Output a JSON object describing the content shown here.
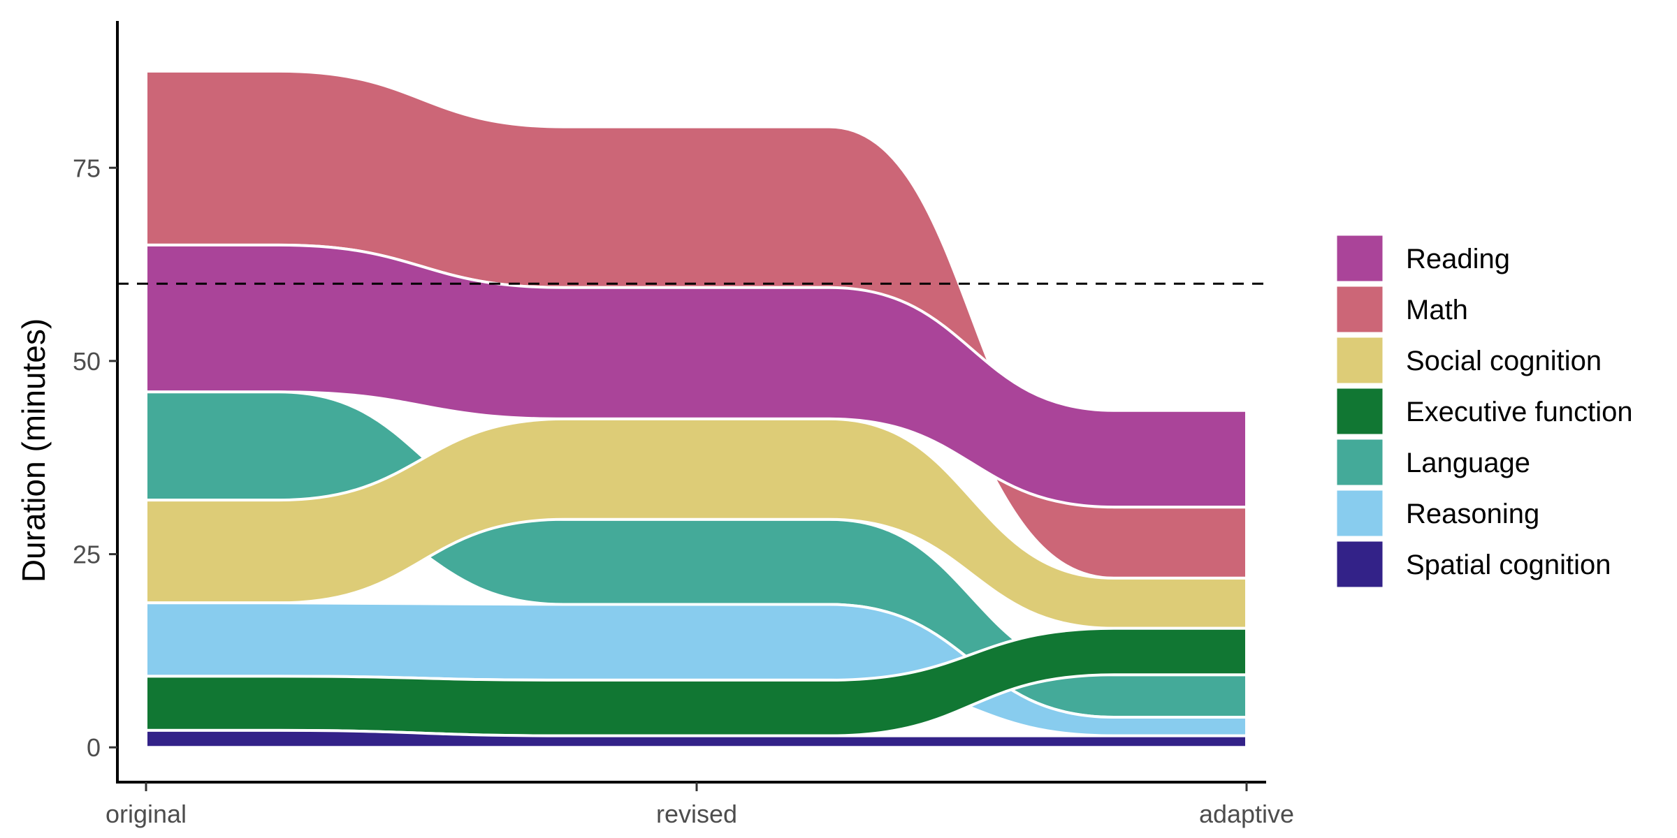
{
  "chart_data": {
    "type": "area",
    "x": [
      "original",
      "revised",
      "adaptive"
    ],
    "xlabel": "",
    "ylabel": "Duration (minutes)",
    "ylim": [
      -4.5,
      94
    ],
    "yticks": [
      0,
      25,
      50,
      75
    ],
    "reference_line": {
      "y": 60,
      "style": "dashed"
    },
    "grid": false,
    "legend_position": "right",
    "series": [
      {
        "name": "Spatial cognition",
        "color": "#332288",
        "values": [
          2.2,
          1.5,
          1.5
        ]
      },
      {
        "name": "Executive function",
        "color": "#117733",
        "values": [
          7.0,
          7.2,
          6.0
        ]
      },
      {
        "name": "Reasoning",
        "color": "#88CCEE",
        "values": [
          9.5,
          9.8,
          2.4
        ]
      },
      {
        "name": "Language",
        "color": "#44AA99",
        "values": [
          14.0,
          11.0,
          5.5
        ]
      },
      {
        "name": "Social cognition",
        "color": "#DDCC77",
        "values": [
          13.3,
          13.0,
          6.5
        ]
      },
      {
        "name": "Reading",
        "color": "#AA4499",
        "values": [
          19.0,
          17.0,
          12.5
        ]
      },
      {
        "name": "Math",
        "color": "#CC6677",
        "values": [
          22.5,
          20.8,
          9.2
        ]
      }
    ],
    "legend_order": [
      "Reading",
      "Math",
      "Social cognition",
      "Executive function",
      "Language",
      "Reasoning",
      "Spatial cognition"
    ],
    "stack_order": [
      [
        "Spatial cognition",
        "Executive function",
        "Reasoning",
        "Social cognition",
        "Language",
        "Reading",
        "Math"
      ],
      [
        "Spatial cognition",
        "Executive function",
        "Reasoning",
        "Language",
        "Social cognition",
        "Reading",
        "Math"
      ],
      [
        "Spatial cognition",
        "Reasoning",
        "Language",
        "Executive function",
        "Social cognition",
        "Math",
        "Reading"
      ]
    ]
  }
}
